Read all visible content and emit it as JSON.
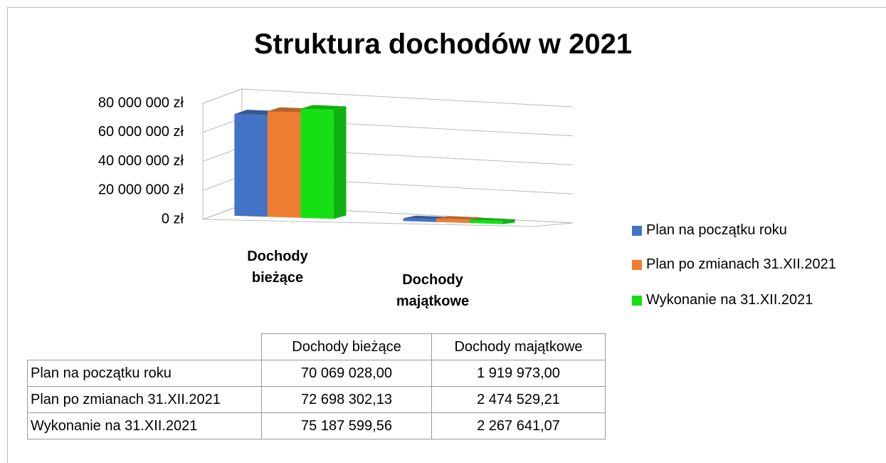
{
  "chart_data": {
    "type": "bar",
    "title": "Struktura dochodów w 2021",
    "categories": [
      "Dochody bieżące",
      "Dochody majątkowe"
    ],
    "series": [
      {
        "name": "Plan na początku roku",
        "color": "#4472c4",
        "values": [
          70069028.0,
          1919973.0
        ],
        "value_labels": [
          "70 069 028,00",
          "1 919 973,00"
        ]
      },
      {
        "name": "Plan po zmianach 31.XII.2021",
        "color": "#ed7d31",
        "values": [
          72698302.13,
          2474529.21
        ],
        "value_labels": [
          "72 698 302,13",
          "2 474 529,21"
        ]
      },
      {
        "name": "Wykonanie na 31.XII.2021",
        "color": "#14e014",
        "values": [
          75187599.56,
          2267641.07
        ],
        "value_labels": [
          "75 187 599,56",
          "2 267 641,07"
        ]
      }
    ],
    "ylim": [
      0,
      80000000
    ],
    "yticks": [
      {
        "value": 0,
        "label": "0 zł"
      },
      {
        "value": 20000000,
        "label": "20 000 000 zł"
      },
      {
        "value": 40000000,
        "label": "40 000 000 zł"
      },
      {
        "value": 60000000,
        "label": "60 000 000 zł"
      },
      {
        "value": 80000000,
        "label": "80 000 000 zł"
      }
    ],
    "grid": true,
    "legend": "right"
  }
}
